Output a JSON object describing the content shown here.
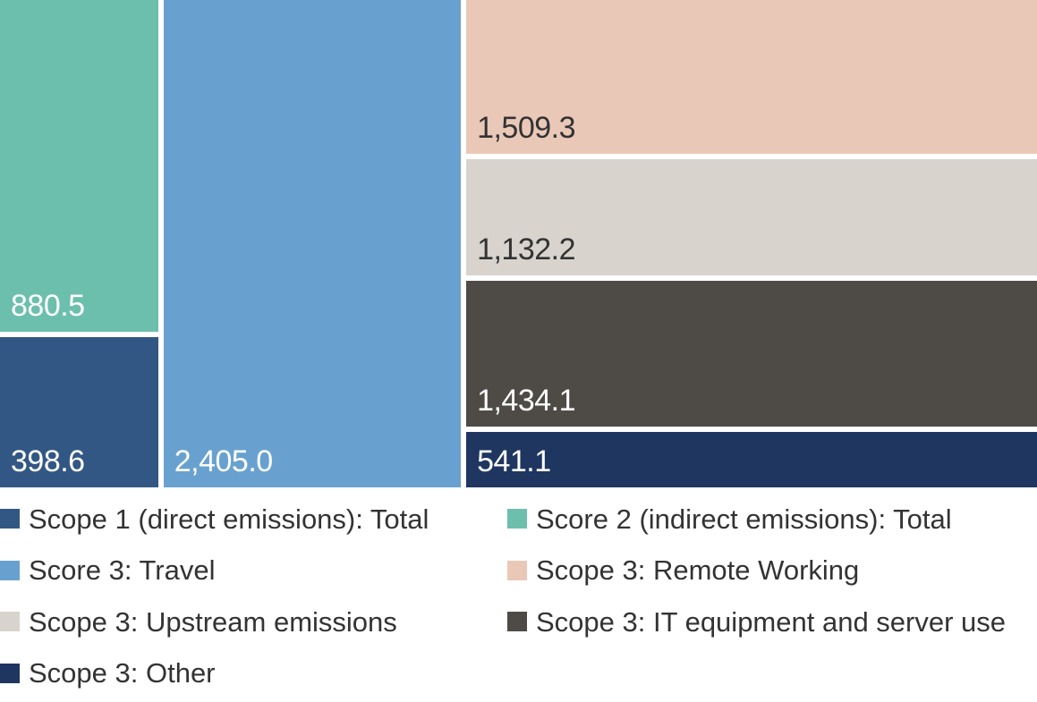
{
  "chart_data": {
    "type": "treemap",
    "title": "",
    "series": [
      {
        "name": "Scope 1 (direct emissions): Total",
        "value": 398.6,
        "label": "398.6",
        "color": "#335784",
        "text_color": "#ffffff"
      },
      {
        "name": "Score 2 (indirect emissions): Total",
        "value": 880.5,
        "label": "880.5",
        "color": "#6cbfad",
        "text_color": "#ffffff"
      },
      {
        "name": "Score 3: Travel",
        "value": 2405.0,
        "label": "2,405.0",
        "color": "#68a1cf",
        "text_color": "#ffffff"
      },
      {
        "name": "Scope 3: Remote Working",
        "value": 1509.3,
        "label": "1,509.3",
        "color": "#eac8b8",
        "text_color": "#333333"
      },
      {
        "name": "Scope 3: Upstream emissions",
        "value": 1132.2,
        "label": "1,132.2",
        "color": "#d8d3cc",
        "text_color": "#333333"
      },
      {
        "name": "Scope 3: IT equipment and server use",
        "value": 1434.1,
        "label": "1,434.1",
        "color": "#4e4b47",
        "text_color": "#ffffff"
      },
      {
        "name": "Scope 3: Other",
        "value": 541.1,
        "label": "541.1",
        "color": "#1e3660",
        "text_color": "#ffffff"
      }
    ],
    "legend_position": "bottom"
  }
}
